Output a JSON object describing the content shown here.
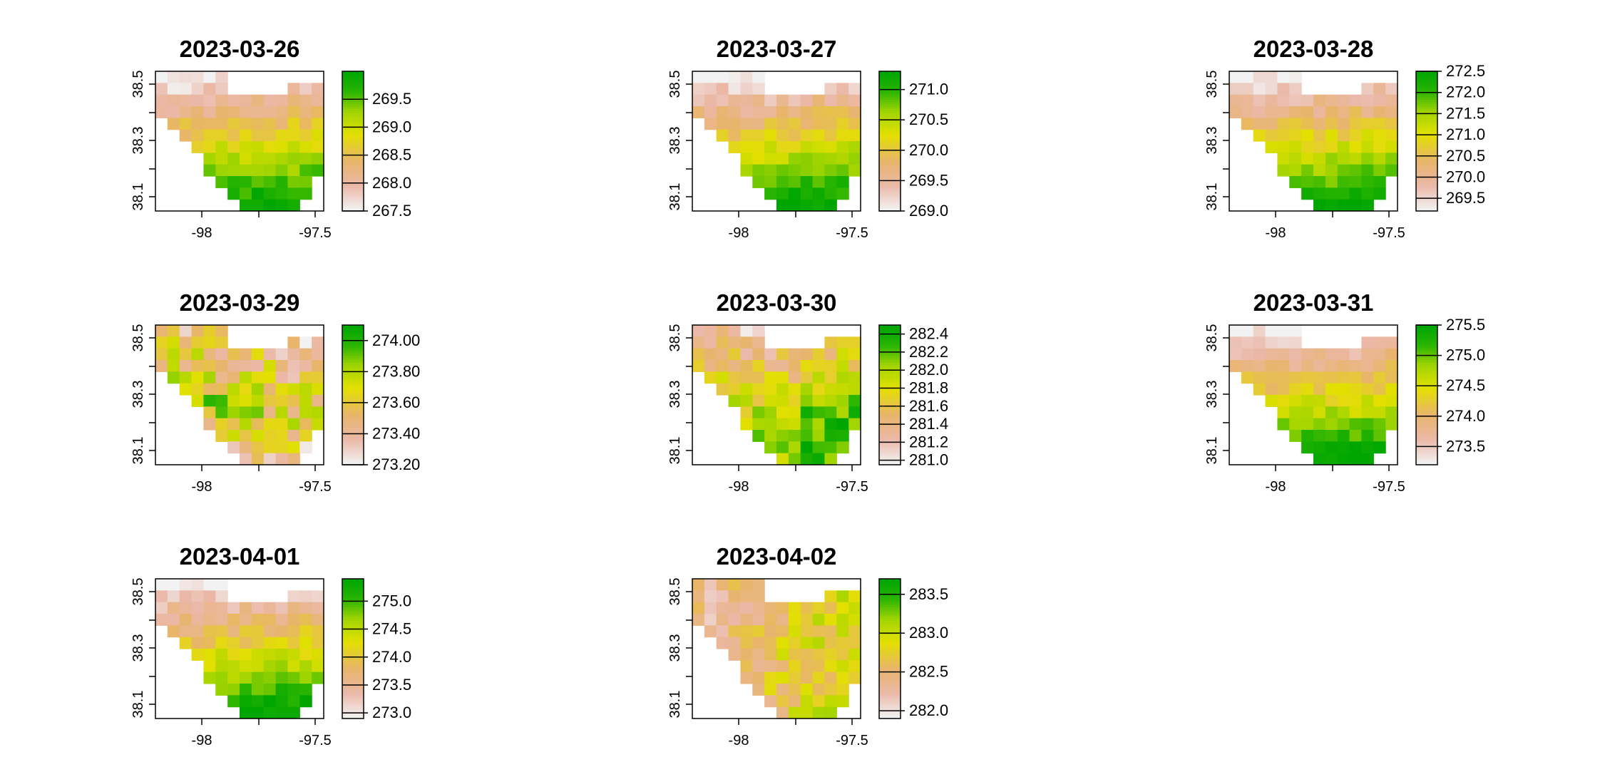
{
  "chart_data": [
    {
      "type": "heatmap",
      "title": "2023-03-26",
      "x_ticks": [
        "-98",
        "-97.5"
      ],
      "y_ticks": [
        "38.1",
        "38.3",
        "38.5"
      ],
      "legend_ticks": [
        "267.5",
        "268.0",
        "268.5",
        "269.0",
        "269.5"
      ],
      "value_range": [
        267.5,
        270.0
      ]
    },
    {
      "type": "heatmap",
      "title": "2023-03-27",
      "x_ticks": [
        "-98",
        "-97.5"
      ],
      "y_ticks": [
        "38.1",
        "38.3",
        "38.5"
      ],
      "legend_ticks": [
        "269.0",
        "269.5",
        "270.0",
        "270.5",
        "271.0"
      ],
      "value_range": [
        269.0,
        271.3
      ]
    },
    {
      "type": "heatmap",
      "title": "2023-03-28",
      "x_ticks": [
        "-98",
        "-97.5"
      ],
      "y_ticks": [
        "38.1",
        "38.3",
        "38.5"
      ],
      "legend_ticks": [
        "269.5",
        "270.0",
        "270.5",
        "271.0",
        "271.5",
        "272.0",
        "272.5"
      ],
      "value_range": [
        269.2,
        272.5
      ]
    },
    {
      "type": "heatmap",
      "title": "2023-03-29",
      "x_ticks": [
        "-98",
        "-97.5"
      ],
      "y_ticks": [
        "38.1",
        "38.3",
        "38.5"
      ],
      "legend_ticks": [
        "273.20",
        "273.40",
        "273.60",
        "273.80",
        "274.00"
      ],
      "value_range": [
        273.2,
        274.1
      ]
    },
    {
      "type": "heatmap",
      "title": "2023-03-30",
      "x_ticks": [
        "-98",
        "-97.5"
      ],
      "y_ticks": [
        "38.1",
        "38.3",
        "38.5"
      ],
      "legend_ticks": [
        "281.0",
        "281.2",
        "281.4",
        "281.6",
        "281.8",
        "282.0",
        "282.2",
        "282.4"
      ],
      "value_range": [
        280.95,
        282.5
      ]
    },
    {
      "type": "heatmap",
      "title": "2023-03-31",
      "x_ticks": [
        "-98",
        "-97.5"
      ],
      "y_ticks": [
        "38.1",
        "38.3",
        "38.5"
      ],
      "legend_ticks": [
        "273.5",
        "274.0",
        "274.5",
        "275.0",
        "275.5"
      ],
      "value_range": [
        273.2,
        275.5
      ]
    },
    {
      "type": "heatmap",
      "title": "2023-04-01",
      "x_ticks": [
        "-98",
        "-97.5"
      ],
      "y_ticks": [
        "38.1",
        "38.3",
        "38.5"
      ],
      "legend_ticks": [
        "273.0",
        "273.5",
        "274.0",
        "274.5",
        "275.0"
      ],
      "value_range": [
        272.9,
        275.4
      ]
    },
    {
      "type": "heatmap",
      "title": "2023-04-02",
      "x_ticks": [
        "-98",
        "-97.5"
      ],
      "y_ticks": [
        "38.1",
        "38.3",
        "38.5"
      ],
      "legend_ticks": [
        "282.0",
        "282.5",
        "283.0",
        "283.5"
      ],
      "value_range": [
        281.9,
        283.7
      ]
    }
  ],
  "colors": {
    "low": "#f2f2f2",
    "pink": "#ebb8a8",
    "orange": "#e8b56a",
    "yellow": "#e3e000",
    "lime": "#9fd400",
    "green": "#2ab500",
    "high": "#00a600"
  }
}
